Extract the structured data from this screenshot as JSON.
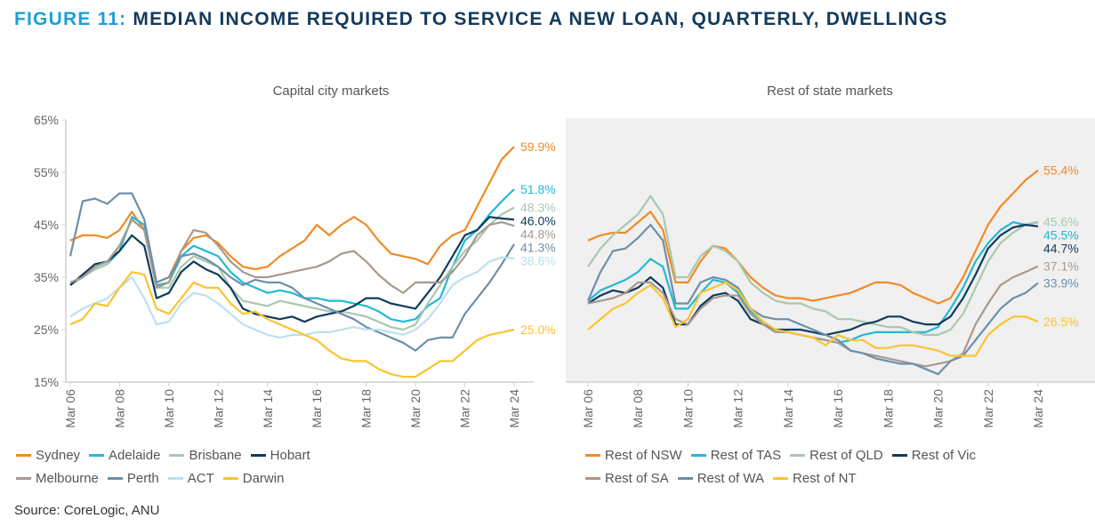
{
  "title": {
    "prefix": "FIGURE 11:",
    "text": "MEDIAN INCOME REQUIRED TO SERVICE A NEW LOAN, QUARTERLY, DWELLINGS"
  },
  "source": "Source: CoreLogic, ANU",
  "chart_data": [
    {
      "type": "line",
      "title": "Capital city markets",
      "xlabel": "",
      "ylabel": "",
      "ylim": [
        15,
        65
      ],
      "yticks": [
        "15%",
        "25%",
        "35%",
        "45%",
        "55%",
        "65%"
      ],
      "ytick_values": [
        15,
        25,
        35,
        45,
        55,
        65
      ],
      "xticks": [
        "Mar 06",
        "Mar 08",
        "Mar 10",
        "Mar 12",
        "Mar 14",
        "Mar 16",
        "Mar 18",
        "Mar 20",
        "Mar 22",
        "Mar 24"
      ],
      "x_start": 2006.0,
      "x_step": 0.5,
      "x_end": 2024.0,
      "grid": false,
      "background": "#ffffff",
      "legend_position": "bottom",
      "series": [
        {
          "name": "Sydney",
          "color": "#f28a24",
          "end_label": "59.9%",
          "values": [
            42,
            43,
            43,
            42.5,
            44,
            47.5,
            44,
            34,
            35,
            40,
            42.5,
            43,
            41.5,
            39,
            37,
            36.5,
            37,
            39,
            40.5,
            42,
            45,
            43,
            45,
            46.5,
            45,
            42,
            39.5,
            39,
            38.5,
            37.5,
            41,
            43,
            44,
            48.5,
            53,
            57.5,
            59.9
          ]
        },
        {
          "name": "Adelaide",
          "color": "#22b8d4",
          "end_label": "51.8%",
          "values": [
            33.5,
            35,
            36.5,
            37.5,
            40,
            46.5,
            45,
            33.5,
            34,
            39,
            41,
            40,
            39,
            36,
            34,
            33,
            32,
            32.5,
            32,
            31,
            31,
            30.5,
            30.5,
            30,
            29.5,
            28.5,
            27,
            26.5,
            27,
            29.5,
            31,
            37,
            42,
            44,
            47,
            49.5,
            51.8
          ]
        },
        {
          "name": "Brisbane",
          "color": "#a9c8ae",
          "end_label": "48.3%",
          "values": [
            33.5,
            35,
            36.5,
            37.5,
            41,
            46,
            44,
            33,
            33,
            37,
            39,
            38,
            37,
            33,
            30.5,
            30,
            29.5,
            30.5,
            30,
            29.5,
            29,
            28.5,
            28.5,
            28,
            27.5,
            26.5,
            25.5,
            25,
            26,
            30,
            33.5,
            37,
            40,
            42,
            45,
            47,
            48.3
          ]
        },
        {
          "name": "Hobart",
          "color": "#0e3b5c",
          "end_label": "46.0%",
          "values": [
            33.5,
            35.5,
            37.5,
            38,
            40,
            43,
            41,
            31,
            32,
            36,
            38,
            36.5,
            35.5,
            33,
            29,
            28,
            27.5,
            27,
            27.5,
            26.5,
            27.5,
            28,
            28.5,
            29.5,
            31,
            31,
            30,
            29.5,
            29,
            32,
            35,
            39,
            43,
            44,
            46.5,
            46.2,
            46.0
          ]
        },
        {
          "name": "Melbourne",
          "color": "#a8998e",
          "end_label": "44.8%",
          "values": [
            34,
            35,
            37,
            38,
            41,
            46,
            44,
            33,
            34,
            40,
            44,
            43.5,
            41,
            38,
            36,
            35,
            35,
            35.5,
            36,
            36.5,
            37,
            38,
            39.5,
            40,
            38,
            35.5,
            33.5,
            32,
            34,
            34,
            34,
            36,
            39,
            43,
            45,
            45.5,
            44.8
          ]
        },
        {
          "name": "Perth",
          "color": "#6d8faa",
          "end_label": "41.3%",
          "values": [
            39,
            49.5,
            50,
            49,
            51,
            51,
            46,
            34,
            35,
            39,
            39.5,
            38.5,
            37,
            35,
            33.5,
            34.5,
            34,
            34,
            33,
            31,
            30,
            29,
            28,
            27,
            25.5,
            24.5,
            23.5,
            22.5,
            21,
            23,
            23.5,
            23.5,
            28,
            31,
            34,
            37.5,
            41.3
          ]
        },
        {
          "name": "ACT",
          "color": "#bde0ee",
          "end_label": "38.6%",
          "values": [
            27.5,
            29,
            30,
            31,
            33,
            35,
            31,
            26,
            26.5,
            30,
            32,
            31.5,
            30,
            28,
            26,
            25,
            24,
            23.5,
            24,
            24,
            24.5,
            24.5,
            25,
            25.5,
            25,
            25,
            24.5,
            24,
            25,
            27,
            30,
            33.5,
            35,
            36,
            38,
            38.8,
            38.6
          ]
        },
        {
          "name": "Darwin",
          "color": "#fcc330",
          "end_label": "25.0%",
          "values": [
            26,
            27,
            30,
            29.5,
            33,
            36,
            35.5,
            29,
            28,
            31,
            34,
            33,
            33,
            30,
            28,
            28.5,
            27,
            26,
            25,
            24,
            23,
            21,
            19.5,
            19,
            19,
            17.5,
            16.5,
            16,
            16,
            17.5,
            19,
            19,
            21,
            23,
            24,
            24.5,
            25.0
          ]
        }
      ]
    },
    {
      "type": "line",
      "title": "Rest of state markets",
      "xlabel": "",
      "ylabel": "",
      "ylim": [
        15,
        65
      ],
      "xticks": [
        "Mar 06",
        "Mar 08",
        "Mar 10",
        "Mar 12",
        "Mar 14",
        "Mar 16",
        "Mar 18",
        "Mar 20",
        "Mar 22",
        "Mar 24"
      ],
      "x_start": 2006.0,
      "x_step": 0.5,
      "x_end": 2024.0,
      "grid": false,
      "background": "#f0f0f0",
      "legend_position": "bottom",
      "series": [
        {
          "name": "Rest of NSW",
          "color": "#f28a24",
          "end_label": "55.4%",
          "values": [
            42,
            43,
            43.5,
            43.5,
            45.5,
            47.5,
            44,
            34,
            34,
            38,
            41,
            40.5,
            38,
            35,
            33,
            31.5,
            31,
            31,
            30.5,
            31,
            31.5,
            32,
            33,
            34,
            34,
            33.5,
            32,
            31,
            30,
            31,
            35,
            40,
            45,
            48.5,
            51,
            53.5,
            55.4
          ]
        },
        {
          "name": "Rest of TAS",
          "color": "#22b8d4",
          "end_label": "45.5%",
          "values": [
            30.5,
            32.5,
            33.5,
            34.5,
            36,
            38.5,
            37,
            29,
            29,
            32,
            34.5,
            34,
            32,
            28.5,
            26.5,
            25,
            24.5,
            24,
            23.5,
            23,
            22.5,
            23,
            24,
            24.5,
            24.5,
            24.5,
            24.5,
            24.5,
            25.5,
            29,
            33,
            38,
            41.5,
            44,
            45.5,
            45,
            45.5
          ]
        },
        {
          "name": "Rest of QLD",
          "color": "#a9c8ae",
          "end_label": "45.6%",
          "values": [
            37,
            40.5,
            43,
            45,
            47,
            50.5,
            47,
            35,
            35,
            39,
            41,
            40,
            38,
            34,
            32,
            30.5,
            30,
            30,
            29,
            28.5,
            27,
            27,
            26.5,
            26,
            25.5,
            25.5,
            24.5,
            24,
            24,
            25,
            28,
            33,
            38,
            41.5,
            43.5,
            45,
            45.6
          ]
        },
        {
          "name": "Rest of Vic",
          "color": "#0e3b5c",
          "end_label": "44.7%",
          "values": [
            30,
            31.5,
            32.5,
            32,
            33,
            35,
            33,
            26,
            26,
            29.5,
            31.5,
            32,
            30.5,
            27,
            26,
            25,
            25,
            25,
            24.5,
            24,
            24.5,
            25,
            26,
            26.5,
            27.5,
            27.5,
            26.5,
            26,
            26,
            27.5,
            31,
            35.5,
            40.5,
            43,
            44.5,
            45,
            44.7
          ]
        },
        {
          "name": "Rest of SA",
          "color": "#a8998e",
          "end_label": "37.1%",
          "values": [
            30,
            30.5,
            31,
            32,
            34,
            34,
            32,
            27,
            26,
            29,
            31,
            31.5,
            31.5,
            28,
            26,
            24.5,
            24.5,
            24,
            23.5,
            23,
            22.5,
            21,
            20.5,
            20,
            19.5,
            19,
            18.5,
            18,
            18.5,
            19,
            20.5,
            26,
            30,
            33.5,
            35,
            36,
            37.1
          ]
        },
        {
          "name": "Rest of WA",
          "color": "#6d8faa",
          "end_label": "33.9%",
          "values": [
            30.5,
            36,
            40,
            40.5,
            42.5,
            45,
            42,
            30,
            30,
            34,
            35,
            34.5,
            33,
            29,
            27.5,
            27,
            27,
            26,
            25,
            24,
            23,
            21,
            20.5,
            19.5,
            19,
            18.5,
            18.5,
            17.5,
            16.5,
            19,
            20,
            23,
            26,
            29,
            31,
            32,
            33.9
          ]
        },
        {
          "name": "Rest of NT",
          "color": "#fcc330",
          "end_label": "26.5%",
          "values": [
            25,
            27,
            29,
            30,
            32,
            33.5,
            31,
            25.5,
            27,
            32,
            33,
            34,
            32.5,
            29,
            26.5,
            25,
            24.5,
            24,
            23.5,
            22,
            24,
            23,
            23,
            21.5,
            21.5,
            22,
            22,
            21.5,
            21,
            20,
            20,
            20,
            24,
            26,
            27.5,
            27.5,
            26.5
          ]
        }
      ]
    }
  ]
}
